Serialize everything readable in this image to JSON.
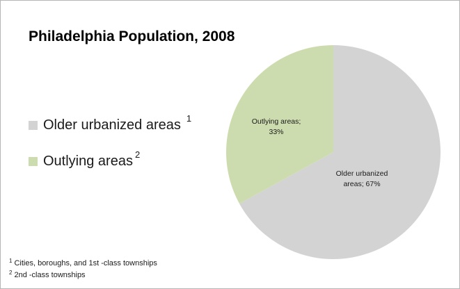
{
  "chart_data": {
    "type": "pie",
    "title": "Philadelphia Population, 2008",
    "slices": [
      {
        "name": "Older urbanized areas",
        "value": 67,
        "label_lines": [
          "Older urbanized",
          "areas; 67%"
        ],
        "color": "#d3d3d3",
        "footnote_mark": "1"
      },
      {
        "name": "Outlying areas",
        "value": 33,
        "label_lines": [
          "Outlying areas;",
          "33%"
        ],
        "color": "#cddcae",
        "footnote_mark": "2"
      }
    ],
    "legend_position": "left",
    "footnotes": [
      {
        "mark": "1",
        "text": "Cities, boroughs, and 1st -class townships"
      },
      {
        "mark": "2",
        "text": "2nd -class townships"
      }
    ]
  }
}
